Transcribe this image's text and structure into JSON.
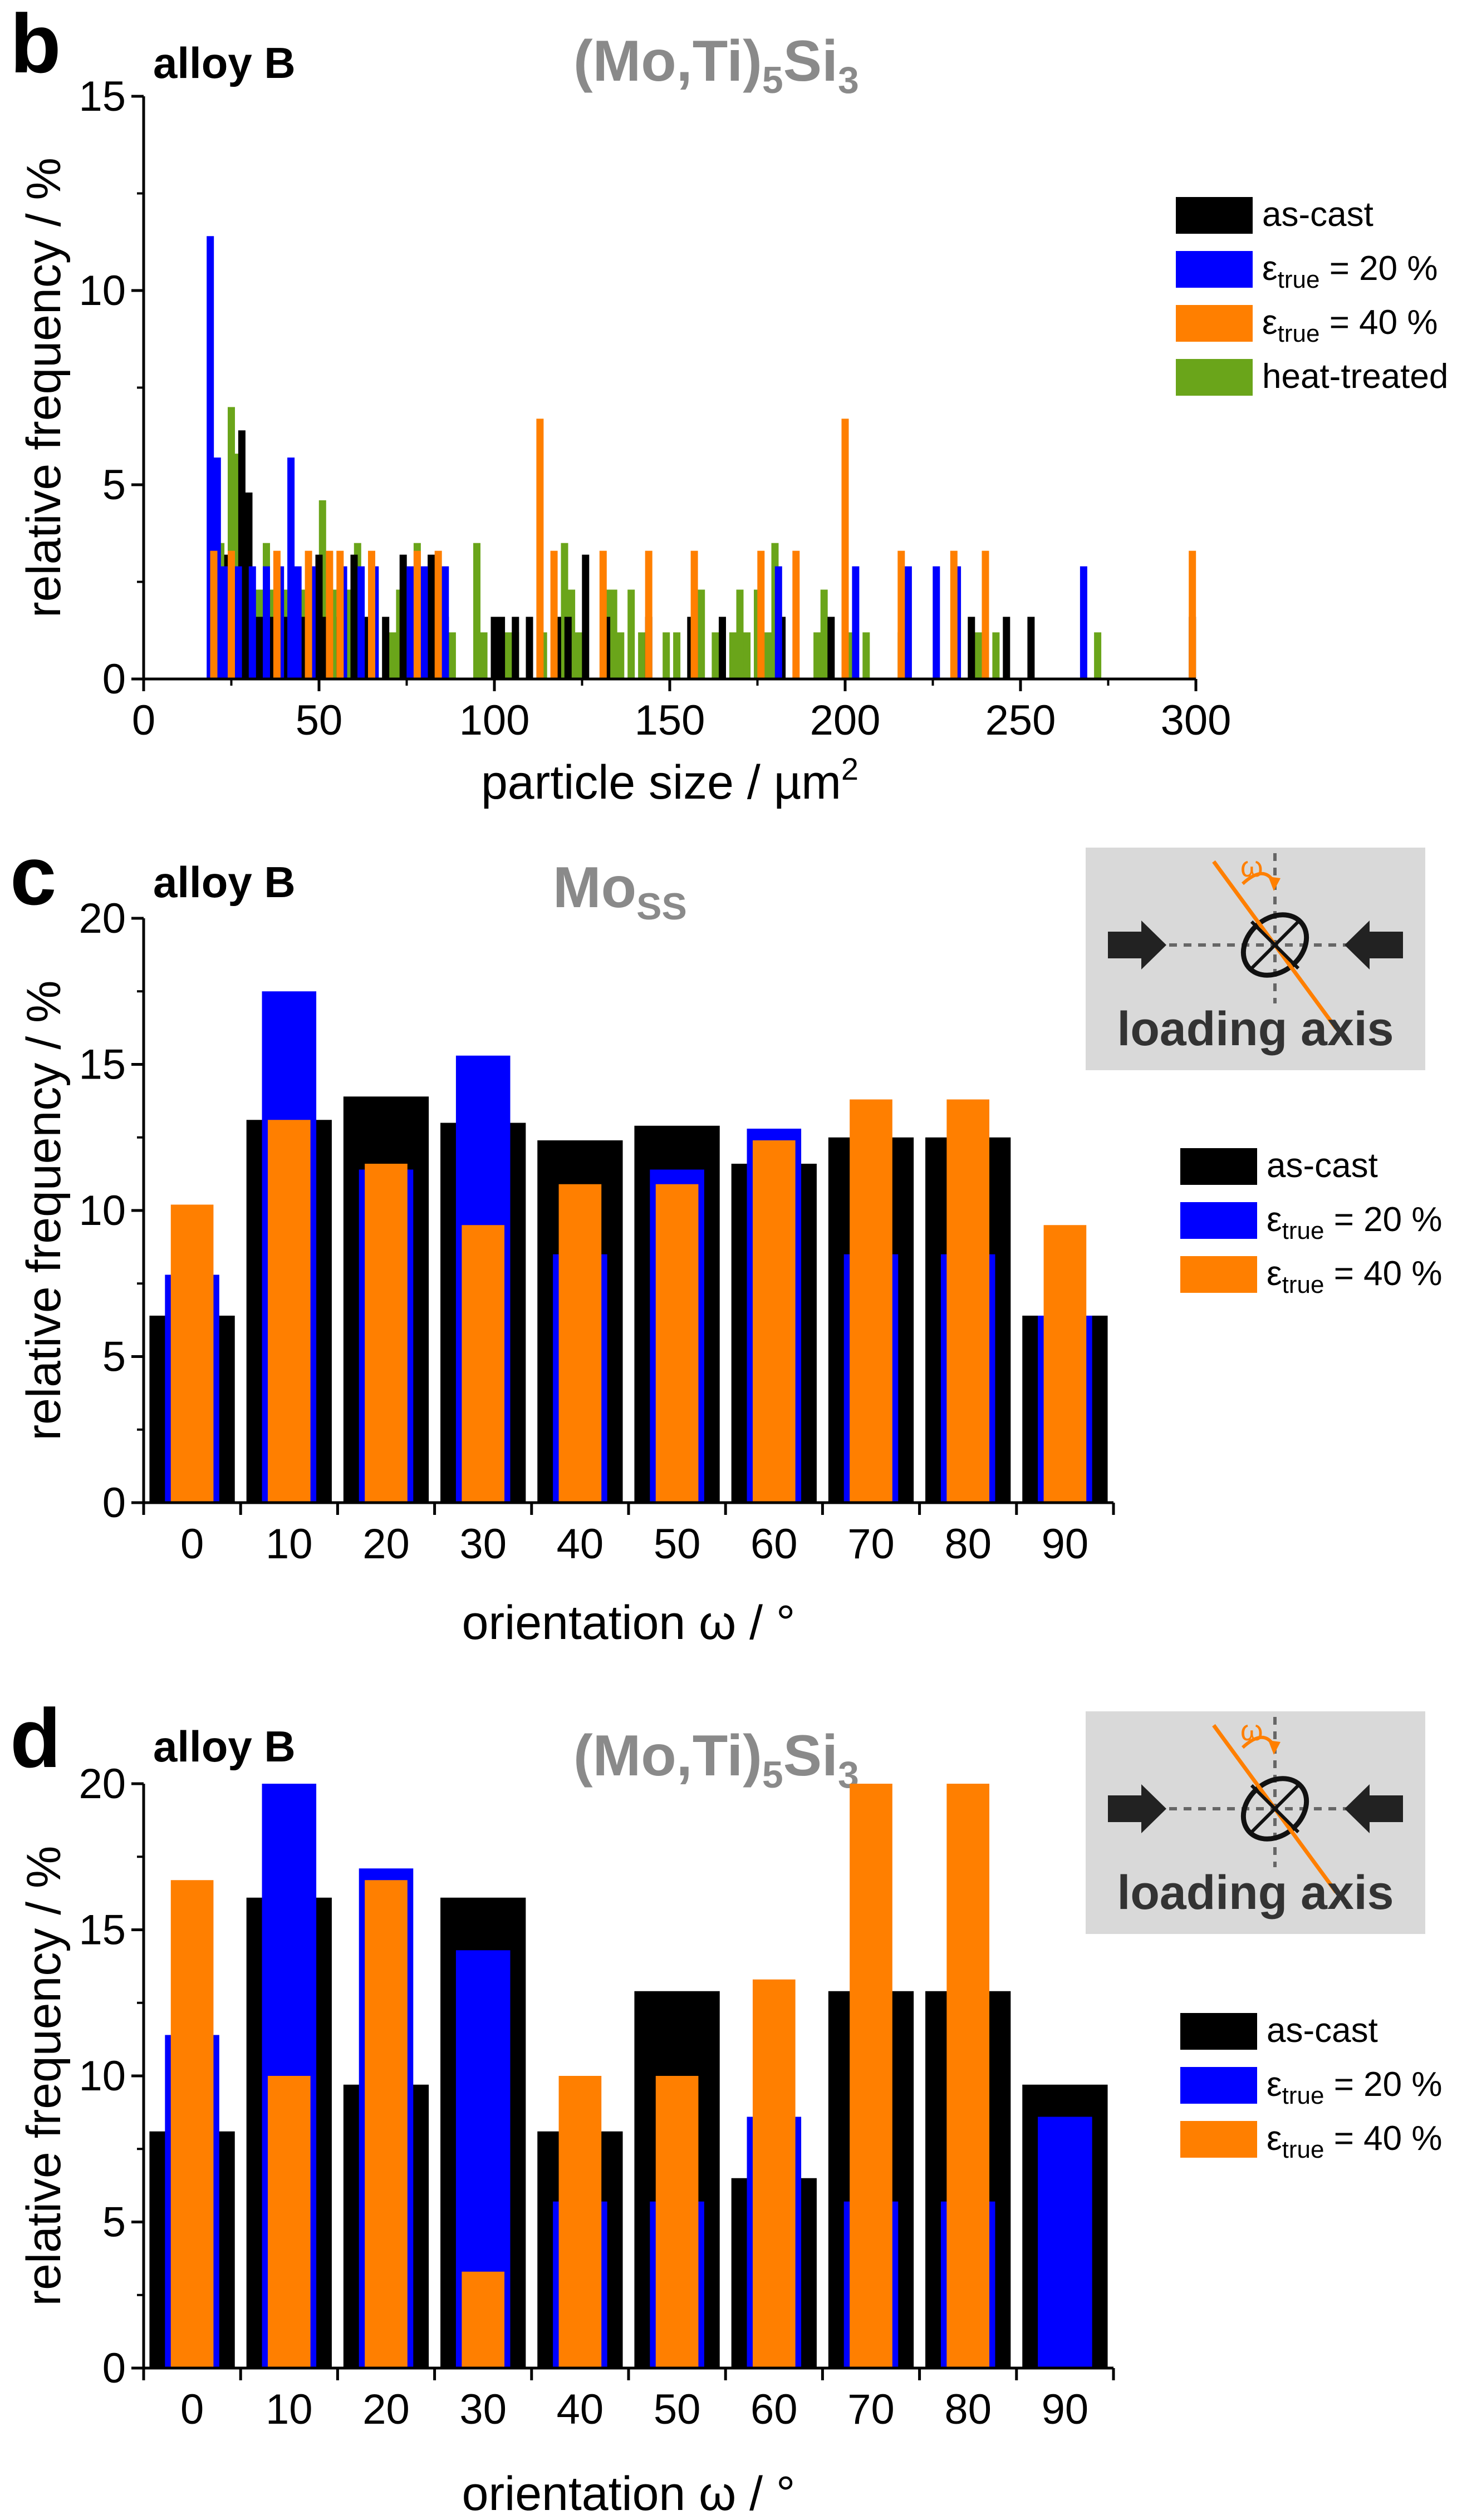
{
  "colors": {
    "as_cast": "#000000",
    "eps20": "#0000ff",
    "eps40": "#ff7f00",
    "heat_treated": "#6aa51a",
    "phase_title": "#8a8a8a",
    "inset_bg": "#d9d9d9",
    "inset_arrow": "#222222"
  },
  "inset": {
    "omega_label": "ω",
    "caption": "loading axis"
  },
  "chart_data": [
    {
      "panel": "b",
      "type": "bar",
      "subtype": "histogram",
      "alloy_label": "alloy B",
      "phase_label": {
        "base": "(Mo,Ti)",
        "sub1": "5",
        "mid": "Si",
        "sub2": "3"
      },
      "xlabel": "particle size / µm",
      "xlabel_sup": "2",
      "ylabel": "relative frequency / %",
      "xlim": [
        0,
        300
      ],
      "ylim": [
        0,
        15
      ],
      "xticks": [
        "0",
        "50",
        "100",
        "150",
        "200",
        "250",
        "300"
      ],
      "yticks": [
        "0",
        "5",
        "10",
        "15"
      ],
      "legend": [
        "as-cast",
        "ε_true = 20 %",
        "ε_true = 40 %",
        "heat-treated"
      ],
      "series": [
        {
          "name": "as-cast",
          "color_key": "as_cast",
          "points": [
            [
              24,
              3.2
            ],
            [
              26,
              1.6
            ],
            [
              28,
              6.4
            ],
            [
              30,
              4.8
            ],
            [
              33,
              1.6
            ],
            [
              36,
              1.6
            ],
            [
              40,
              1.6
            ],
            [
              45,
              1.6
            ],
            [
              50,
              3.2
            ],
            [
              52,
              1.6
            ],
            [
              56,
              1.6
            ],
            [
              60,
              3.2
            ],
            [
              63,
              1.6
            ],
            [
              69,
              1.6
            ],
            [
              74,
              3.2
            ],
            [
              78,
              1.6
            ],
            [
              82,
              3.2
            ],
            [
              86,
              1.6
            ],
            [
              100,
              1.6
            ],
            [
              102,
              1.6
            ],
            [
              106,
              1.6
            ],
            [
              110,
              1.6
            ],
            [
              118,
              1.6
            ],
            [
              121,
              1.6
            ],
            [
              126,
              3.2
            ],
            [
              132,
              1.6
            ],
            [
              144,
              1.6
            ],
            [
              156,
              1.6
            ],
            [
              165,
              1.6
            ],
            [
              182,
              1.6
            ],
            [
              196,
              1.6
            ],
            [
              236,
              1.6
            ],
            [
              246,
              1.6
            ],
            [
              253,
              1.6
            ],
            [
              299,
              1.6
            ]
          ]
        },
        {
          "name": "ε_true = 20 %",
          "color_key": "eps20",
          "points": [
            [
              19,
              11.4
            ],
            [
              21,
              5.7
            ],
            [
              23,
              2.9
            ],
            [
              27,
              2.9
            ],
            [
              31,
              2.9
            ],
            [
              35,
              2.9
            ],
            [
              39,
              2.9
            ],
            [
              42,
              5.7
            ],
            [
              44,
              2.9
            ],
            [
              48,
              2.9
            ],
            [
              57,
              2.9
            ],
            [
              62,
              2.9
            ],
            [
              66,
              2.9
            ],
            [
              76,
              2.9
            ],
            [
              80,
              2.9
            ],
            [
              86,
              2.9
            ],
            [
              181,
              2.9
            ],
            [
              203,
              2.9
            ],
            [
              218,
              2.9
            ],
            [
              226,
              2.9
            ],
            [
              232,
              2.9
            ],
            [
              268,
              2.9
            ]
          ]
        },
        {
          "name": "ε_true = 40 %",
          "color_key": "eps40",
          "points": [
            [
              20,
              3.3
            ],
            [
              25,
              3.3
            ],
            [
              38,
              3.3
            ],
            [
              47,
              3.3
            ],
            [
              53,
              3.3
            ],
            [
              56,
              3.3
            ],
            [
              65,
              3.3
            ],
            [
              78,
              3.3
            ],
            [
              84,
              3.3
            ],
            [
              113,
              6.7
            ],
            [
              117,
              3.3
            ],
            [
              131,
              3.3
            ],
            [
              144,
              3.3
            ],
            [
              157,
              3.3
            ],
            [
              176,
              3.3
            ],
            [
              186,
              3.3
            ],
            [
              200,
              6.7
            ],
            [
              216,
              3.3
            ],
            [
              231,
              3.3
            ],
            [
              240,
              3.3
            ],
            [
              299,
              3.3
            ]
          ]
        },
        {
          "name": "heat-treated",
          "color_key": "heat_treated",
          "points": [
            [
              20,
              1.2
            ],
            [
              22,
              3.5
            ],
            [
              24,
              2.3
            ],
            [
              25,
              7.0
            ],
            [
              27,
              5.8
            ],
            [
              29,
              4.6
            ],
            [
              31,
              1.2
            ],
            [
              33,
              2.3
            ],
            [
              35,
              3.5
            ],
            [
              37,
              2.3
            ],
            [
              41,
              2.3
            ],
            [
              43,
              1.2
            ],
            [
              46,
              2.3
            ],
            [
              49,
              1.2
            ],
            [
              51,
              4.6
            ],
            [
              53,
              1.2
            ],
            [
              55,
              2.3
            ],
            [
              57,
              1.2
            ],
            [
              59,
              2.3
            ],
            [
              61,
              3.5
            ],
            [
              63,
              1.2
            ],
            [
              66,
              2.3
            ],
            [
              71,
              1.2
            ],
            [
              73,
              2.3
            ],
            [
              76,
              1.2
            ],
            [
              78,
              3.5
            ],
            [
              81,
              1.2
            ],
            [
              83,
              2.3
            ],
            [
              88,
              1.2
            ],
            [
              95,
              3.5
            ],
            [
              97,
              1.2
            ],
            [
              104,
              1.2
            ],
            [
              106,
              1.2
            ],
            [
              110,
              1.2
            ],
            [
              114,
              1.2
            ],
            [
              118,
              1.2
            ],
            [
              120,
              3.5
            ],
            [
              122,
              2.3
            ],
            [
              124,
              1.2
            ],
            [
              132,
              2.3
            ],
            [
              134,
              2.3
            ],
            [
              136,
              1.2
            ],
            [
              139,
              2.3
            ],
            [
              142,
              1.2
            ],
            [
              149,
              1.2
            ],
            [
              152,
              1.2
            ],
            [
              159,
              2.3
            ],
            [
              163,
              1.2
            ],
            [
              168,
              1.2
            ],
            [
              170,
              2.3
            ],
            [
              172,
              1.2
            ],
            [
              175,
              2.3
            ],
            [
              178,
              1.2
            ],
            [
              180,
              3.5
            ],
            [
              192,
              1.2
            ],
            [
              194,
              2.3
            ],
            [
              202,
              1.2
            ],
            [
              206,
              1.2
            ],
            [
              216,
              1.2
            ],
            [
              238,
              1.2
            ],
            [
              243,
              1.2
            ],
            [
              272,
              1.2
            ]
          ]
        }
      ]
    },
    {
      "panel": "c",
      "type": "bar",
      "subtype": "overlaid",
      "alloy_label": "alloy B",
      "phase_label": {
        "base": "Mo",
        "sub": "SS"
      },
      "xlabel": "orientation ω / °",
      "ylabel": "relative frequency / %",
      "ylim": [
        0,
        20
      ],
      "yticks": [
        "0",
        "5",
        "10",
        "15",
        "20"
      ],
      "categories": [
        "0",
        "10",
        "20",
        "30",
        "40",
        "50",
        "60",
        "70",
        "80",
        "90"
      ],
      "legend": [
        "as-cast",
        "ε_true = 20 %",
        "ε_true = 40 %"
      ],
      "series": [
        {
          "name": "as-cast",
          "color_key": "as_cast",
          "values": [
            6.4,
            13.1,
            13.9,
            13.0,
            12.4,
            12.9,
            11.6,
            12.5,
            12.5,
            6.4
          ]
        },
        {
          "name": "ε_true = 20 %",
          "color_key": "eps20",
          "values": [
            7.8,
            17.5,
            11.4,
            15.3,
            8.5,
            11.4,
            12.8,
            8.5,
            8.5,
            6.4
          ]
        },
        {
          "name": "ε_true = 40 %",
          "color_key": "eps40",
          "values": [
            10.2,
            13.1,
            11.6,
            9.5,
            10.9,
            10.9,
            12.4,
            13.8,
            13.8,
            9.5
          ]
        }
      ]
    },
    {
      "panel": "d",
      "type": "bar",
      "subtype": "overlaid",
      "alloy_label": "alloy B",
      "phase_label": {
        "base": "(Mo,Ti)",
        "sub1": "5",
        "mid": "Si",
        "sub2": "3"
      },
      "xlabel": "orientation ω / °",
      "ylabel": "relative frequency / %",
      "ylim": [
        0,
        20
      ],
      "yticks": [
        "0",
        "5",
        "10",
        "15",
        "20"
      ],
      "categories": [
        "0",
        "10",
        "20",
        "30",
        "40",
        "50",
        "60",
        "70",
        "80",
        "90"
      ],
      "legend": [
        "as-cast",
        "ε_true = 20 %",
        "ε_true = 40 %"
      ],
      "series": [
        {
          "name": "as-cast",
          "color_key": "as_cast",
          "values": [
            8.1,
            16.1,
            9.7,
            16.1,
            8.1,
            12.9,
            6.5,
            12.9,
            12.9,
            9.7
          ]
        },
        {
          "name": "ε_true = 20 %",
          "color_key": "eps20",
          "values": [
            11.4,
            20.0,
            17.1,
            14.3,
            5.7,
            5.7,
            8.6,
            5.7,
            5.7,
            8.6
          ]
        },
        {
          "name": "ε_true = 40 %",
          "color_key": "eps40",
          "values": [
            16.7,
            10.0,
            16.7,
            3.3,
            10.0,
            10.0,
            13.3,
            20.0,
            20.0,
            0
          ]
        }
      ]
    }
  ]
}
